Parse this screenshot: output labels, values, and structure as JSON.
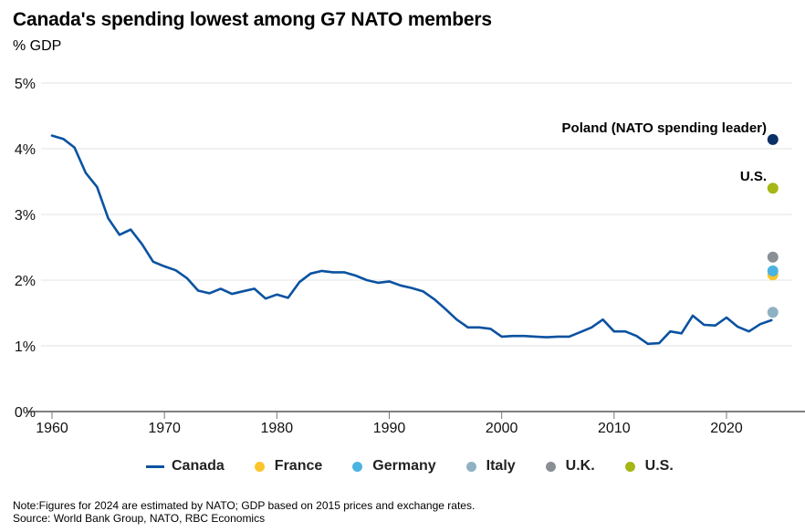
{
  "header": {
    "title": "Canada's spending lowest among G7 NATO members",
    "unit_label": "% GDP"
  },
  "chart_data": {
    "type": "line",
    "title": "Canada's spending lowest among G7 NATO members",
    "xlabel": "",
    "ylabel": "% GDP",
    "xlim": [
      1960,
      2024
    ],
    "ylim": [
      0,
      5
    ],
    "grid": true,
    "x_ticks": [
      1960,
      1970,
      1980,
      1990,
      2000,
      2010,
      2020
    ],
    "x_tick_labels": [
      "1960",
      "1970",
      "1980",
      "1990",
      "2000",
      "2010",
      "2020"
    ],
    "y_ticks": [
      0,
      1,
      2,
      3,
      4,
      5
    ],
    "y_tick_labels": [
      "0%",
      "1%",
      "2%",
      "3%",
      "4%",
      "5%"
    ],
    "legend_position": "bottom",
    "series": [
      {
        "name": "Canada",
        "kind": "line",
        "color": "#0a52a1",
        "x": [
          1960,
          1961,
          1962,
          1963,
          1964,
          1965,
          1966,
          1967,
          1968,
          1969,
          1970,
          1971,
          1972,
          1973,
          1974,
          1975,
          1976,
          1977,
          1978,
          1979,
          1980,
          1981,
          1982,
          1983,
          1984,
          1985,
          1986,
          1987,
          1988,
          1989,
          1990,
          1991,
          1992,
          1993,
          1994,
          1995,
          1996,
          1997,
          1998,
          1999,
          2000,
          2001,
          2002,
          2003,
          2004,
          2005,
          2006,
          2007,
          2008,
          2009,
          2010,
          2011,
          2012,
          2013,
          2014,
          2015,
          2016,
          2017,
          2018,
          2019,
          2020,
          2021,
          2022,
          2023,
          2024
        ],
        "values": [
          4.2,
          4.15,
          4.02,
          3.63,
          3.42,
          2.94,
          2.69,
          2.77,
          2.55,
          2.28,
          2.21,
          2.15,
          2.03,
          1.84,
          1.8,
          1.87,
          1.79,
          1.83,
          1.87,
          1.72,
          1.78,
          1.73,
          1.97,
          2.1,
          2.14,
          2.12,
          2.12,
          2.07,
          2.0,
          1.96,
          1.98,
          1.92,
          1.88,
          1.83,
          1.71,
          1.56,
          1.4,
          1.28,
          1.28,
          1.26,
          1.14,
          1.15,
          1.15,
          1.14,
          1.13,
          1.14,
          1.14,
          1.21,
          1.28,
          1.4,
          1.22,
          1.22,
          1.15,
          1.03,
          1.04,
          1.22,
          1.19,
          1.46,
          1.32,
          1.31,
          1.43,
          1.29,
          1.22,
          1.33,
          1.39
        ]
      },
      {
        "name": "France",
        "kind": "point",
        "color": "#fcc42c",
        "x": [
          2024
        ],
        "values": [
          2.08
        ]
      },
      {
        "name": "Germany",
        "kind": "point",
        "color": "#4bb3e0",
        "x": [
          2024
        ],
        "values": [
          2.14
        ]
      },
      {
        "name": "Italy",
        "kind": "point",
        "color": "#8eb1c4",
        "x": [
          2024
        ],
        "values": [
          1.51
        ]
      },
      {
        "name": "U.K.",
        "kind": "point",
        "color": "#8a8f96",
        "x": [
          2024
        ],
        "values": [
          2.35
        ]
      },
      {
        "name": "U.S.",
        "kind": "point",
        "color": "#a6b615",
        "x": [
          2024
        ],
        "values": [
          3.4
        ]
      },
      {
        "name": "Poland (NATO spending leader)",
        "kind": "point",
        "color": "#0b2f66",
        "x": [
          2024
        ],
        "values": [
          4.14
        ]
      }
    ],
    "annotations": [
      {
        "text": "Poland (NATO spending leader)",
        "x": 2024,
        "y": 4.14
      },
      {
        "text": "U.S.",
        "x": 2024,
        "y": 3.4
      }
    ]
  },
  "legend": {
    "items": [
      {
        "label": "Canada",
        "kind": "line",
        "color": "#0a52a1"
      },
      {
        "label": "France",
        "kind": "dot",
        "color": "#fcc42c"
      },
      {
        "label": "Germany",
        "kind": "dot",
        "color": "#4bb3e0"
      },
      {
        "label": "Italy",
        "kind": "dot",
        "color": "#8eb1c4"
      },
      {
        "label": "U.K.",
        "kind": "dot",
        "color": "#8a8f96"
      },
      {
        "label": "U.S.",
        "kind": "dot",
        "color": "#a6b615"
      }
    ]
  },
  "footer": {
    "note": "Note:Figures for 2024 are estimated by NATO; GDP based on 2015 prices and exchange rates.",
    "source": "Source: World Bank Group, NATO, RBC Economics"
  },
  "colors": {
    "gridline": "#e3e3e3",
    "axis": "#333333"
  }
}
